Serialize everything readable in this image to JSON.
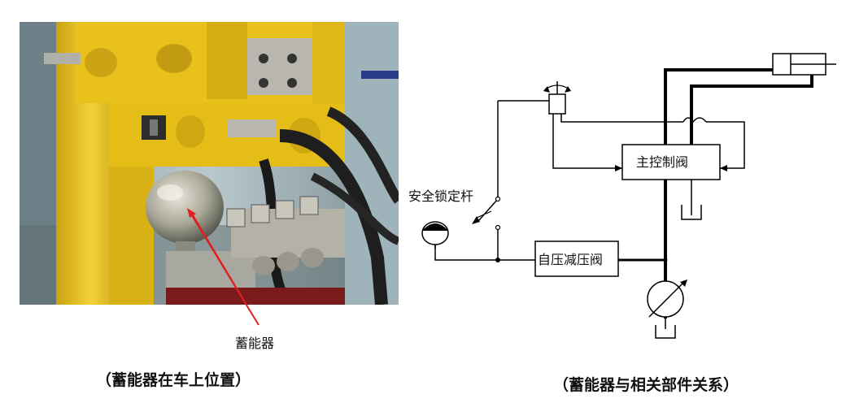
{
  "photo": {
    "callout_label": "蓄能器"
  },
  "schematic": {
    "labels": {
      "main_valve": "主控制阀",
      "reducing_valve": "自压减压阀",
      "lock_lever": "安全锁定杆"
    }
  },
  "captions": {
    "left": "（蓄能器在车上位置）",
    "right": "（蓄能器与相关部件关系）"
  },
  "colors": {
    "callout_arrow": "#e02020",
    "machine_yellow": "#e8c21a",
    "line": "#000000"
  }
}
